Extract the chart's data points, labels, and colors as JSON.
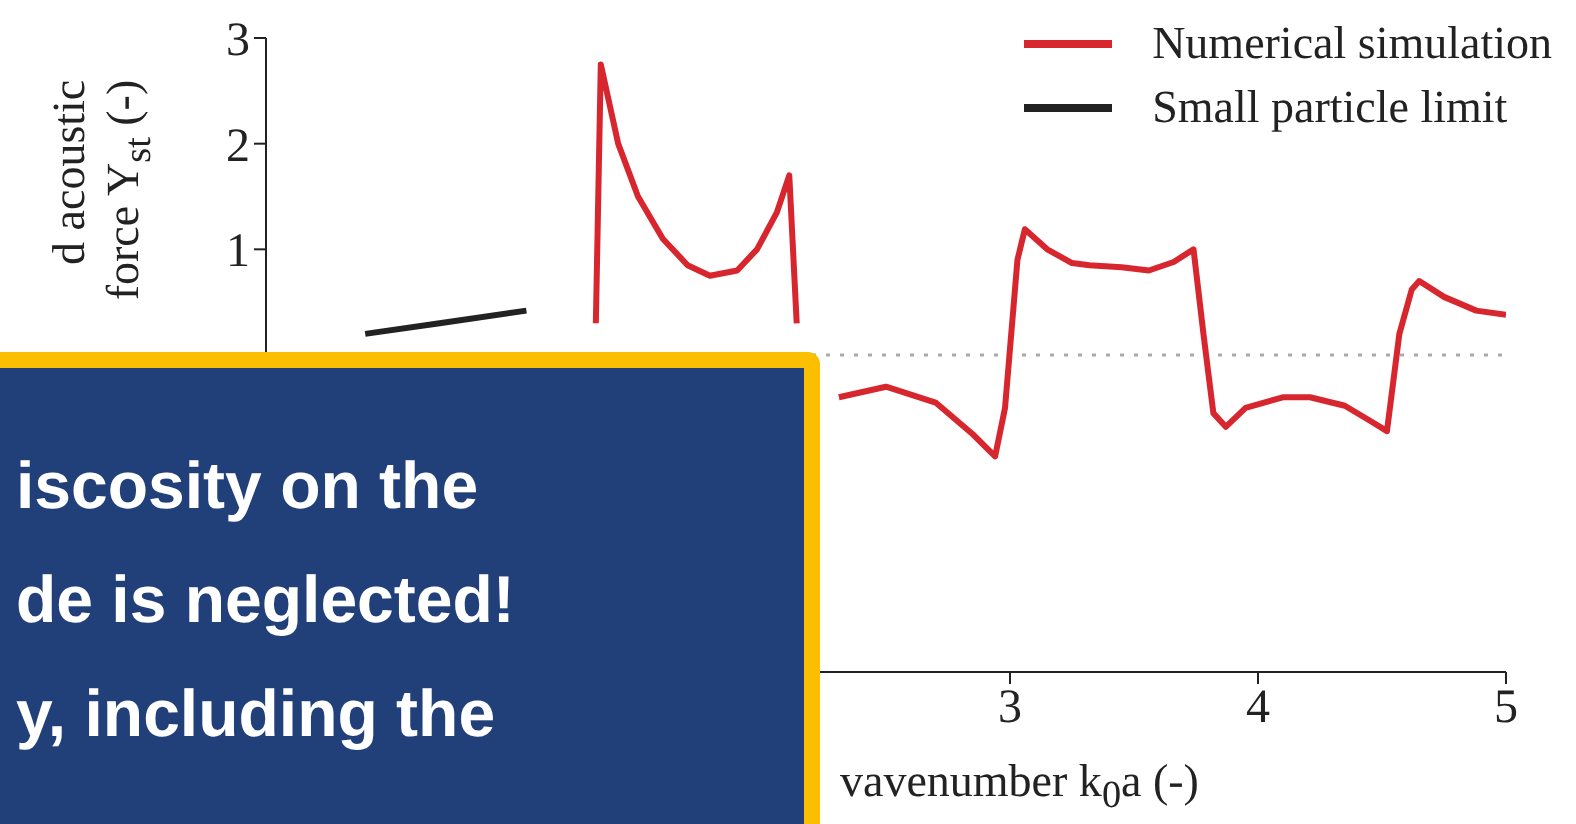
{
  "chart_data": {
    "type": "line",
    "xlabel": "vavenumber k$_{0}$a (-)",
    "ylabel": "d acoustic\nforce Y$_{st}$ (-)",
    "xlim": [
      0,
      5
    ],
    "ylim": [
      -3,
      3
    ],
    "xticks": [
      3,
      4,
      5
    ],
    "yticks": [
      1,
      2,
      3
    ],
    "series": [
      {
        "name": "Numerical simulation",
        "color": "#d7262e",
        "x": [
          1.33,
          1.35,
          1.42,
          1.5,
          1.6,
          1.7,
          1.79,
          1.9,
          1.98,
          2.06,
          2.11,
          2.14,
          2.2,
          2.31,
          2.5,
          2.7,
          2.85,
          2.94,
          2.98,
          3.03,
          3.06,
          3.15,
          3.25,
          3.32,
          3.45,
          3.56,
          3.66,
          3.74,
          3.78,
          3.82,
          3.87,
          3.95,
          4.1,
          4.21,
          4.35,
          4.45,
          4.52,
          4.57,
          4.62,
          4.65,
          4.75,
          4.88,
          5.0
        ],
        "values": [
          0.3,
          2.75,
          2.0,
          1.5,
          1.1,
          0.85,
          0.75,
          0.8,
          1.0,
          1.35,
          1.7,
          0.3,
          null,
          -0.4,
          -0.3,
          -0.45,
          -0.75,
          -0.96,
          -0.5,
          0.9,
          1.19,
          1.0,
          0.87,
          0.85,
          0.83,
          0.8,
          0.88,
          1.0,
          0.2,
          -0.55,
          -0.68,
          -0.5,
          -0.4,
          -0.4,
          -0.48,
          -0.62,
          -0.72,
          0.2,
          0.62,
          0.7,
          0.55,
          0.42,
          0.38
        ]
      },
      {
        "name": "Small particle limit",
        "color": "#222222",
        "x": [
          0.4,
          0.7,
          1.05
        ],
        "values": [
          0.2,
          0.3,
          0.42
        ]
      }
    ],
    "ref_lines": [
      {
        "axis": "y",
        "value": 0,
        "color": "#aaaaaa",
        "line_style": "dotted"
      }
    ],
    "legend": "top right",
    "annotations": [
      "iscosity on the",
      "de is neglected!",
      "y, including the"
    ]
  }
}
